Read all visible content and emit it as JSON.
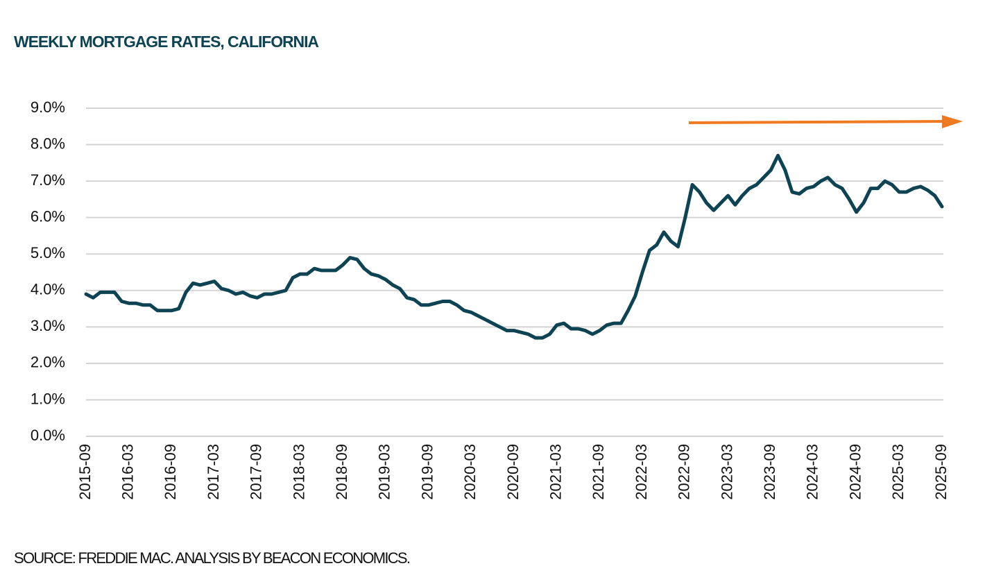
{
  "chart_data": {
    "type": "line",
    "title": "WEEKLY MORTGAGE RATES, CALIFORNIA",
    "source": "SOURCE: FREDDIE MAC. ANALYSIS BY BEACON ECONOMICS.",
    "categories": [
      "2015-09",
      null,
      null,
      null,
      null,
      null,
      "2016-03",
      null,
      null,
      null,
      null,
      null,
      "2016-09",
      null,
      null,
      null,
      null,
      null,
      "2017-03",
      null,
      null,
      null,
      null,
      null,
      "2017-09",
      null,
      null,
      null,
      null,
      null,
      "2018-03",
      null,
      null,
      null,
      null,
      null,
      "2018-09",
      null,
      null,
      null,
      null,
      null,
      "2019-03",
      null,
      null,
      null,
      null,
      null,
      "2019-09",
      null,
      null,
      null,
      null,
      null,
      "2020-03",
      null,
      null,
      null,
      null,
      null,
      "2020-09",
      null,
      null,
      null,
      null,
      null,
      "2021-03",
      null,
      null,
      null,
      null,
      null,
      "2021-09",
      null,
      null,
      null,
      null,
      null,
      "2022-03",
      null,
      null,
      null,
      null,
      null,
      "2022-09",
      null,
      null,
      null,
      null,
      null,
      "2023-03",
      null,
      null,
      null,
      null,
      null,
      "2023-09",
      null,
      null,
      null,
      null,
      null,
      "2024-03",
      null,
      null,
      null,
      null,
      null,
      "2024-09",
      null,
      null,
      null,
      null,
      null,
      "2025-03",
      null,
      null,
      null,
      null,
      null,
      "2025-09"
    ],
    "values": [
      3.9,
      3.8,
      3.95,
      3.95,
      3.95,
      3.7,
      3.65,
      3.65,
      3.6,
      3.6,
      3.45,
      3.45,
      3.45,
      3.5,
      3.95,
      4.2,
      4.15,
      4.2,
      4.25,
      4.05,
      4.0,
      3.9,
      3.95,
      3.85,
      3.8,
      3.9,
      3.9,
      3.95,
      4.0,
      4.35,
      4.45,
      4.45,
      4.6,
      4.55,
      4.55,
      4.55,
      4.7,
      4.9,
      4.85,
      4.6,
      4.45,
      4.4,
      4.3,
      4.15,
      4.05,
      3.8,
      3.75,
      3.6,
      3.6,
      3.65,
      3.7,
      3.7,
      3.6,
      3.45,
      3.4,
      3.3,
      3.2,
      3.1,
      3.0,
      2.9,
      2.9,
      2.85,
      2.8,
      2.7,
      2.7,
      2.8,
      3.05,
      3.1,
      2.95,
      2.95,
      2.9,
      2.8,
      2.9,
      3.05,
      3.1,
      3.1,
      3.45,
      3.85,
      4.5,
      5.1,
      5.25,
      5.6,
      5.35,
      5.2,
      6.0,
      6.9,
      6.7,
      6.4,
      6.2,
      6.4,
      6.6,
      6.35,
      6.6,
      6.8,
      6.9,
      7.1,
      7.3,
      7.7,
      7.3,
      6.7,
      6.65,
      6.8,
      6.85,
      7.0,
      7.1,
      6.9,
      6.8,
      6.5,
      6.15,
      6.4,
      6.8,
      6.8,
      7.0,
      6.9,
      6.7,
      6.7,
      6.8,
      6.85,
      6.75,
      6.6,
      6.3
    ],
    "color": "#0d4352",
    "ylim": [
      0,
      9
    ],
    "yticks": [
      {
        "value": 0,
        "label": "0.0%"
      },
      {
        "value": 1,
        "label": "1.0%"
      },
      {
        "value": 2,
        "label": "2.0%"
      },
      {
        "value": 3,
        "label": "3.0%"
      },
      {
        "value": 4,
        "label": "4.0%"
      },
      {
        "value": 5,
        "label": "5.0%"
      },
      {
        "value": 6,
        "label": "6.0%"
      },
      {
        "value": 7,
        "label": "7.0%"
      },
      {
        "value": 8,
        "label": "8.0%"
      },
      {
        "value": 9,
        "label": "9.0%"
      }
    ],
    "grid": true
  }
}
